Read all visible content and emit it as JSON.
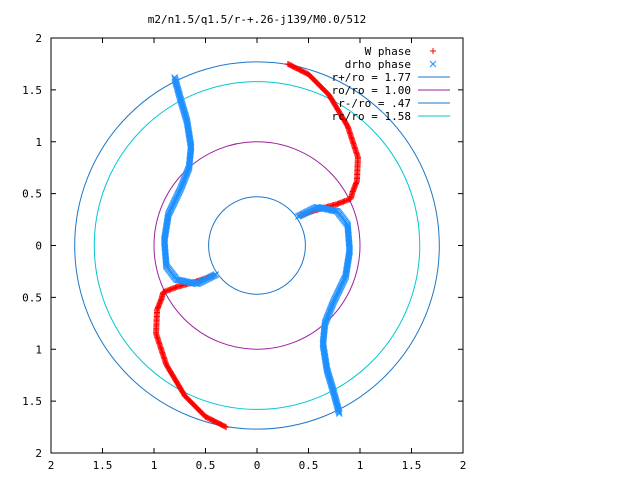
{
  "chart_data": {
    "type": "scatter",
    "title": "m2/n1.5/q1.5/r-+.26-j139/M0.0/512",
    "xlabel": "",
    "ylabel": "",
    "xlim": [
      -2,
      2
    ],
    "ylim": [
      -2,
      2
    ],
    "xticks": [
      -2,
      -1.5,
      -1,
      -0.5,
      0,
      0.5,
      1,
      1.5,
      2
    ],
    "yticks": [
      -2,
      -1.5,
      -1,
      -0.5,
      0,
      0.5,
      1,
      1.5,
      2
    ],
    "xtick_labels": [
      "2",
      "1.5",
      "1",
      "0.5",
      "0",
      "0.5",
      "1",
      "1.5",
      "2"
    ],
    "ytick_labels": [
      "2",
      "1.5",
      "1",
      "0.5",
      "0",
      "0.5",
      "1",
      "1.5",
      "2"
    ],
    "grid": false,
    "legend_position": "top-right",
    "series": [
      {
        "name": "W phase",
        "kind": "points",
        "marker": "+",
        "color": "#ff0000",
        "path_x": [
          0.3,
          0.5,
          0.7,
          0.88,
          0.98,
          0.97,
          0.93,
          0.91,
          0.78,
          0.6,
          0.42
        ],
        "path_y": [
          1.75,
          1.65,
          1.45,
          1.15,
          0.85,
          0.62,
          0.52,
          0.45,
          0.4,
          0.35,
          0.29
        ]
      },
      {
        "name": "drho phase",
        "kind": "points",
        "marker": "x",
        "color": "#1e90ff",
        "path_x": [
          0.4,
          0.58,
          0.78,
          0.88,
          0.9,
          0.86,
          0.74,
          0.66,
          0.64,
          0.68,
          0.74,
          0.8
        ],
        "path_y": [
          0.28,
          0.37,
          0.33,
          0.2,
          -0.05,
          -0.3,
          -0.55,
          -0.75,
          -0.95,
          -1.2,
          -1.4,
          -1.62
        ]
      },
      {
        "name": "r+/ro = 1.77",
        "kind": "circle",
        "radius": 1.77,
        "color": "#1e78c8"
      },
      {
        "name": "ro/ro = 1.00",
        "kind": "circle",
        "radius": 1.0,
        "color": "#a020a0"
      },
      {
        "name": "r-/ro = .47",
        "kind": "circle",
        "radius": 0.47,
        "color": "#1e78c8"
      },
      {
        "name": "rc/ro = 1.58",
        "kind": "circle",
        "radius": 1.58,
        "color": "#00c8d2"
      }
    ]
  }
}
